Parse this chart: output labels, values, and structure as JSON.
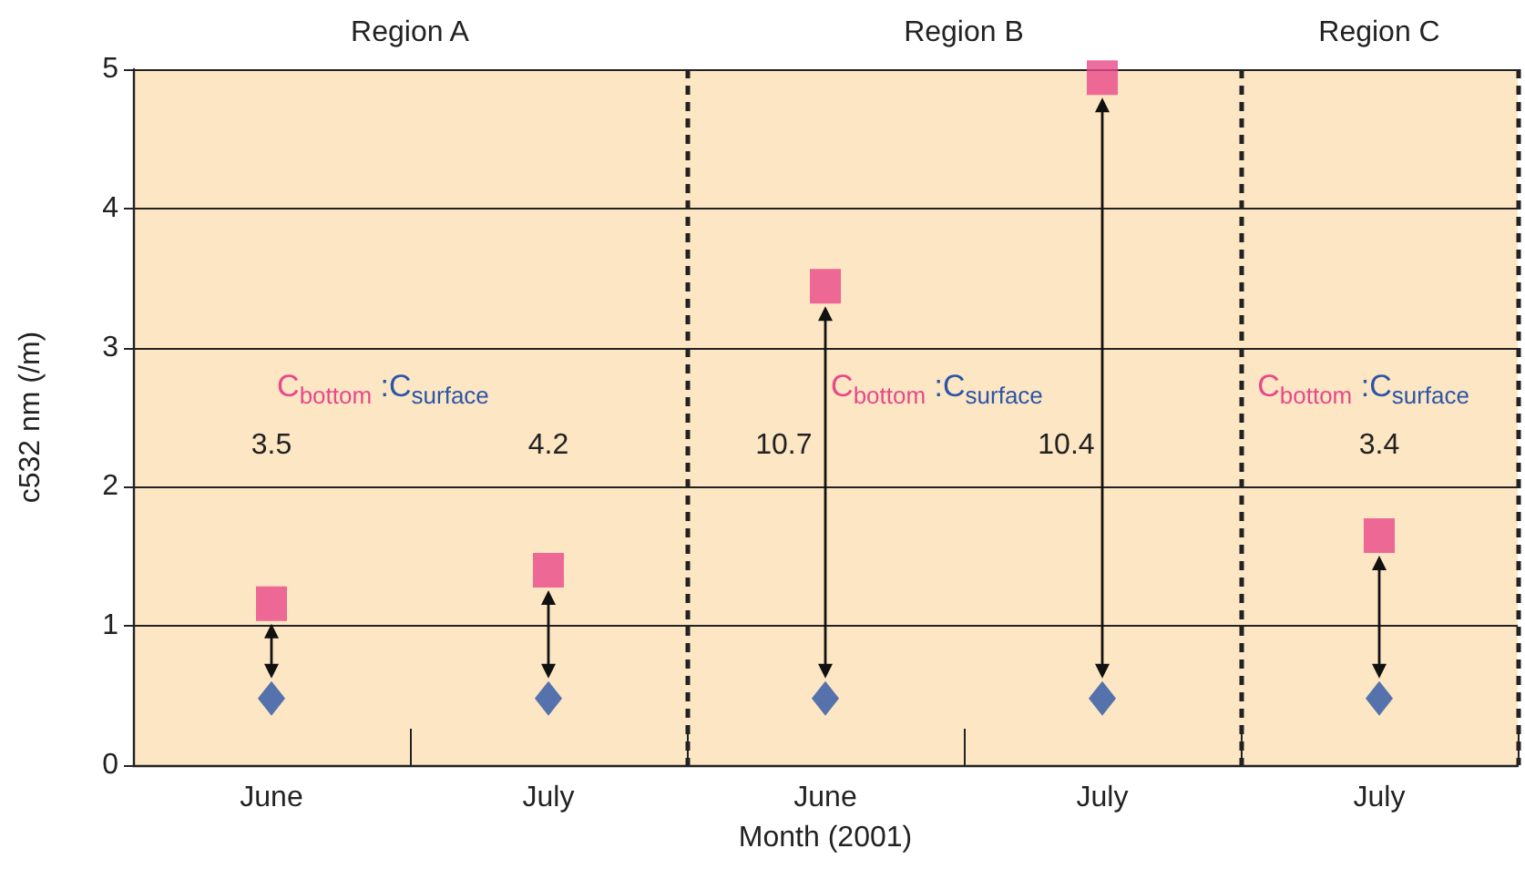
{
  "chart_data": {
    "type": "scatter",
    "xlabel": "Month (2001)",
    "ylabel": "c532 nm (/m)",
    "categories": [
      "June",
      "July",
      "June",
      "July",
      "July"
    ],
    "series": [
      {
        "color": "#e8488a",
        "marker": "square",
        "values": [
          1.16,
          1.4,
          3.44,
          4.94,
          1.65
        ]
      },
      {
        "color": "#2b55a8",
        "marker": "diamond",
        "values": [
          0.48,
          0.48,
          0.48,
          0.48,
          0.48
        ]
      }
    ],
    "ylim": [
      0,
      5
    ],
    "yticks": [
      0,
      1,
      2,
      3,
      4,
      5
    ],
    "grid": "y",
    "annotations": [
      "Region A",
      "Region B",
      "Region C",
      "C$_{bottom}$ :C$_{surface}$",
      "C$_{bottom}$ :C$_{surface}$",
      "C$_{bottom}$ :C$_{surface}$",
      "3.5",
      "4.2",
      "10.7",
      "10.4",
      "3.4"
    ]
  }
}
